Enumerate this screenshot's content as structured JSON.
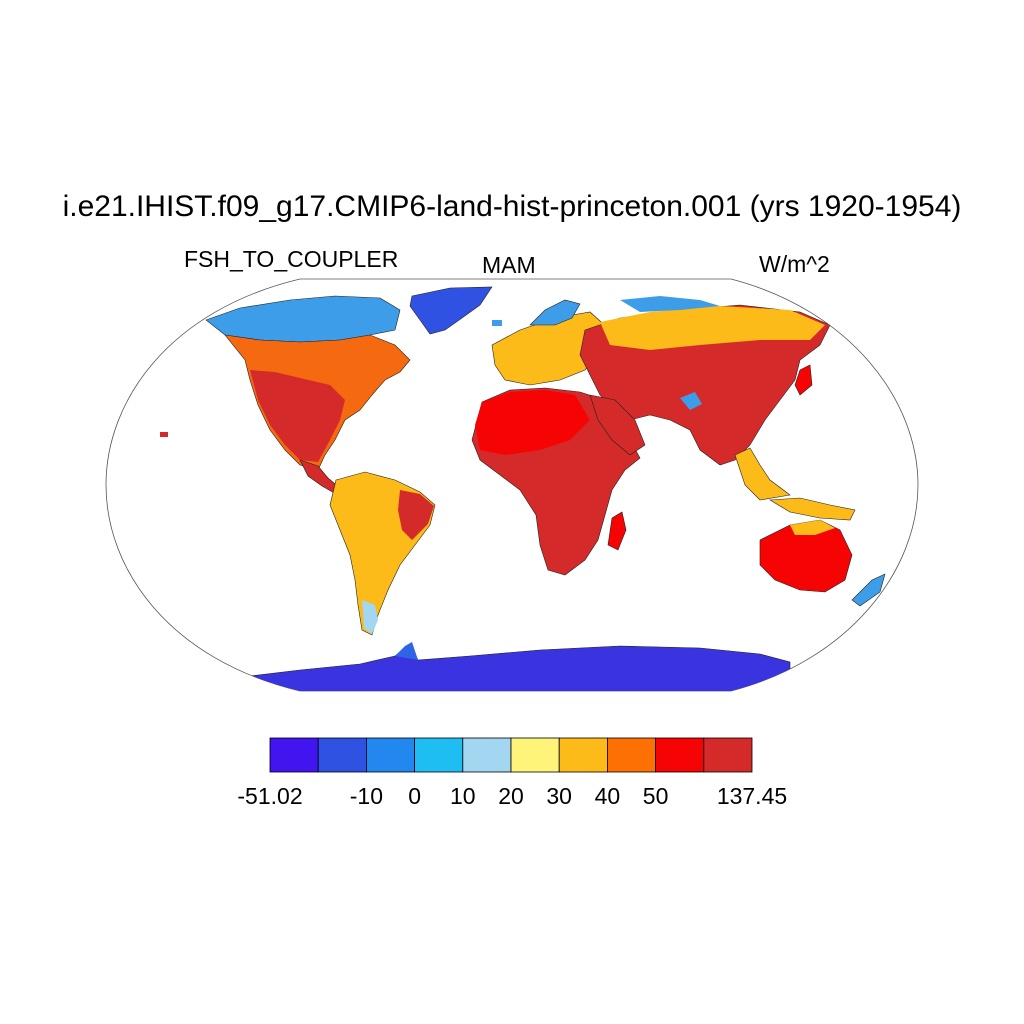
{
  "title": "i.e21.IHIST.f09_g17.CMIP6-land-hist-princeton.001 (yrs 1920-1954)",
  "variable": "FSH_TO_COUPLER",
  "season": "MAM",
  "units": "W/m^2",
  "colorbar": {
    "colors": [
      "#4214f0",
      "#3052e2",
      "#2288f0",
      "#1ebdf2",
      "#a3d6f0",
      "#fff47a",
      "#fcbb18",
      "#fd7104",
      "#f60404",
      "#d42a2a"
    ],
    "labels": [
      "-51.02",
      "-10",
      "0",
      "10",
      "20",
      "30",
      "40",
      "50",
      "137.45"
    ]
  },
  "colors": {
    "ice": "#3a34e0",
    "boreal": "#3d9de8",
    "land_warm": "#f56a10",
    "land_hot": "#d42a2a",
    "land_mid": "#fcbb18",
    "coast": "#222222"
  }
}
